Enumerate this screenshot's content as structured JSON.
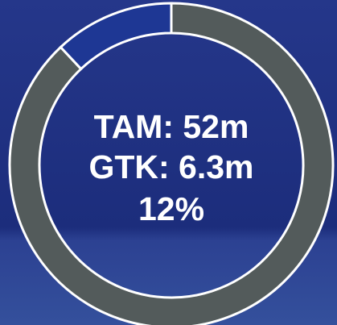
{
  "chart_data": {
    "type": "donut",
    "values": [
      88,
      12
    ],
    "colors": [
      "#535b5b",
      "#1e3794"
    ],
    "center_text": [
      "TAM: 52m",
      "GTK: 6.3m",
      "12%"
    ]
  }
}
